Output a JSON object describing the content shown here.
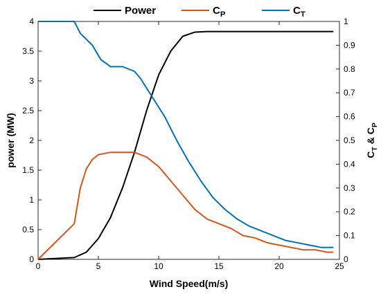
{
  "chart_data": {
    "type": "line",
    "xlabel": "Wind Speed(m/s)",
    "ylabel": "power (MW)",
    "y2label": "CT & CP",
    "xlim": [
      0,
      25
    ],
    "xticks": [
      0,
      5,
      10,
      15,
      20,
      25
    ],
    "ylim": [
      0,
      4
    ],
    "yticks": [
      0,
      0.5,
      1,
      1.5,
      2,
      2.5,
      3,
      3.5,
      4
    ],
    "y2lim": [
      0,
      1
    ],
    "y2ticks": [
      0,
      0.1,
      0.2,
      0.3,
      0.4,
      0.5,
      0.6,
      0.7,
      0.8,
      0.9,
      1
    ],
    "grid": false,
    "legend": "top",
    "series": [
      {
        "name": "Power",
        "color": "#000000",
        "axis": "y",
        "x": [
          0,
          3,
          4,
          5,
          6,
          7,
          8,
          9,
          10,
          11,
          12,
          13,
          14,
          16,
          18,
          20,
          22,
          24.5
        ],
        "values": [
          0,
          0.03,
          0.12,
          0.35,
          0.7,
          1.2,
          1.8,
          2.5,
          3.1,
          3.5,
          3.75,
          3.82,
          3.83,
          3.83,
          3.83,
          3.83,
          3.83,
          3.83
        ]
      },
      {
        "name": "CP",
        "color": "#d95319",
        "axis": "y2",
        "x": [
          0,
          3,
          3.5,
          4,
          4.5,
          5,
          6,
          7,
          8,
          9,
          10,
          11,
          12,
          13,
          14,
          15,
          16,
          17,
          18,
          19,
          20,
          21,
          22,
          23,
          24,
          24.5
        ],
        "values": [
          0,
          0.15,
          0.3,
          0.38,
          0.42,
          0.44,
          0.45,
          0.45,
          0.45,
          0.43,
          0.39,
          0.33,
          0.27,
          0.21,
          0.17,
          0.15,
          0.13,
          0.1,
          0.09,
          0.07,
          0.06,
          0.05,
          0.04,
          0.04,
          0.03,
          0.03
        ]
      },
      {
        "name": "CT",
        "color": "#0072bd",
        "axis": "y2",
        "x": [
          0,
          3,
          3.5,
          4.5,
          5.2,
          6,
          7,
          8,
          8.5,
          9.5,
          10.5,
          11.5,
          12.5,
          13.5,
          14.5,
          15.5,
          16.5,
          17.5,
          18.5,
          19.5,
          20.5,
          21.5,
          22.5,
          23.5,
          24.5
        ],
        "values": [
          1,
          1,
          0.95,
          0.9,
          0.84,
          0.81,
          0.81,
          0.79,
          0.76,
          0.68,
          0.6,
          0.5,
          0.41,
          0.33,
          0.26,
          0.21,
          0.17,
          0.14,
          0.12,
          0.1,
          0.08,
          0.07,
          0.06,
          0.05,
          0.05
        ]
      }
    ]
  }
}
